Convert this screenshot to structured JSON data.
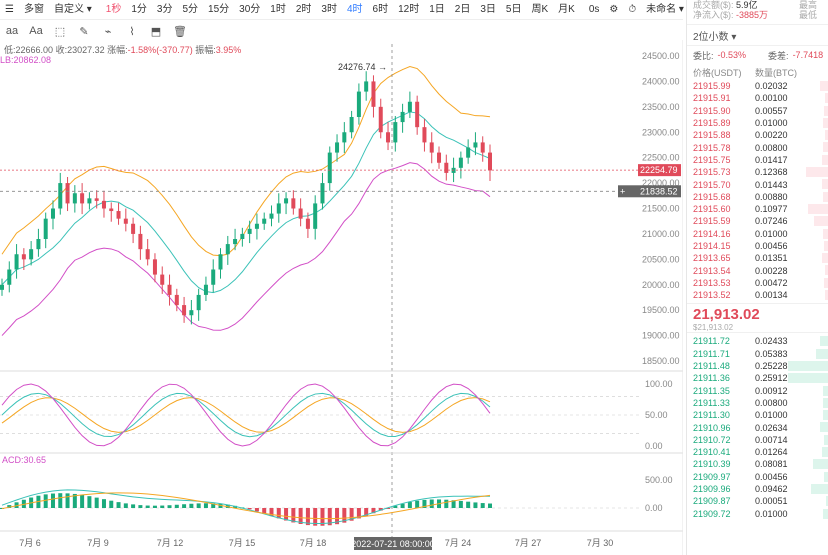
{
  "toolbar": {
    "left_items": [
      {
        "label": "☰",
        "name": "menu-icon"
      },
      {
        "label": "多窗",
        "name": "multi-window-button"
      },
      {
        "label": "自定义 ▾",
        "name": "custom-dropdown"
      }
    ],
    "intervals": [
      "1秒",
      "1分",
      "3分",
      "5分",
      "15分",
      "30分",
      "1时",
      "2时",
      "3时",
      "4时",
      "6时",
      "12时",
      "1日",
      "2日",
      "3日",
      "5日",
      "周K",
      "月K"
    ],
    "active_interval": "4时",
    "red_interval": "1秒",
    "right_items": [
      "0s",
      "⚙",
      "⏱",
      "未命名 ▾"
    ]
  },
  "toolbar2": {
    "icons": [
      "aa",
      "Aa",
      "⬚",
      "✎",
      "⌁",
      "⌇",
      "⬒",
      "🗑"
    ]
  },
  "info": {
    "low_label": "低:",
    "low": "22666.00",
    "close_label": "收:",
    "close": "23027.32",
    "change_label": "涨幅:",
    "change": "-1.58%(-370.77)",
    "amp_label": "振幅:",
    "amp": "3.95%",
    "line2": "LB:20862.08"
  },
  "chart_data": {
    "type": "candlestick",
    "price_axis": [
      "24500.00",
      "24000.00",
      "23500.00",
      "23000.00",
      "22500.00",
      "22000.00",
      "21500.00",
      "21000.00",
      "20500.00",
      "20000.00",
      "19500.00",
      "19000.00",
      "18500.00"
    ],
    "price_tag": "22254.79",
    "crosshair_price": "21838.52",
    "high_marker": "24276.74 →",
    "kdj_axis": [
      "100.00",
      "50.00",
      "0.00"
    ],
    "macd_label": "ACD:30.65",
    "macd_axis": [
      "500.00",
      "0.00"
    ],
    "date_axis": [
      "7月 6",
      "7月 9",
      "7月 12",
      "7月 15",
      "7月 18",
      "7月 24",
      "7月 27",
      "7月 30"
    ],
    "crosshair_date": "2022-07-21 08:00:00",
    "colors": {
      "up": "#1aaa7c",
      "down": "#e04a5a",
      "boll_upper": "#f5a623",
      "boll_mid": "#3bc2b8",
      "boll_lower": "#d24fc7"
    }
  },
  "panel": {
    "vol_label": "成交额(",
    "vol_unit": "$):",
    "vol_value": "5.9亿",
    "net_label": "净流入($):",
    "net_value": "-3885万",
    "r1": "最高",
    "r2": "最低",
    "decimal": "2位小数 ▾",
    "ratio_label": "委比:",
    "ratio": "-0.53%",
    "diff_label": "委差:",
    "diff": "-7.7418",
    "col_price": "价格(USDT)",
    "col_qty": "数量(BTC)",
    "asks": [
      {
        "p": "21915.99",
        "q": "0.02032",
        "w": 8
      },
      {
        "p": "21915.91",
        "q": "0.00100",
        "w": 3
      },
      {
        "p": "21915.90",
        "q": "0.00557",
        "w": 4
      },
      {
        "p": "21915.89",
        "q": "0.01000",
        "w": 5
      },
      {
        "p": "21915.88",
        "q": "0.00220",
        "w": 3
      },
      {
        "p": "21915.78",
        "q": "0.00800",
        "w": 5
      },
      {
        "p": "21915.75",
        "q": "0.01417",
        "w": 6
      },
      {
        "p": "21915.73",
        "q": "0.12368",
        "w": 22
      },
      {
        "p": "21915.70",
        "q": "0.01443",
        "w": 6
      },
      {
        "p": "21915.68",
        "q": "0.00880",
        "w": 5
      },
      {
        "p": "21915.60",
        "q": "0.10977",
        "w": 20
      },
      {
        "p": "21915.59",
        "q": "0.07246",
        "w": 14
      },
      {
        "p": "21914.16",
        "q": "0.01000",
        "w": 5
      },
      {
        "p": "21914.15",
        "q": "0.00456",
        "w": 4
      },
      {
        "p": "21913.65",
        "q": "0.01351",
        "w": 6
      },
      {
        "p": "21913.54",
        "q": "0.00228",
        "w": 3
      },
      {
        "p": "21913.53",
        "q": "0.00472",
        "w": 4
      },
      {
        "p": "21913.52",
        "q": "0.00134",
        "w": 3
      }
    ],
    "last_price": "21,913.02",
    "last_price_usd": "$21,913.02",
    "bids": [
      {
        "p": "21911.72",
        "q": "0.02433",
        "w": 8
      },
      {
        "p": "21911.71",
        "q": "0.05383",
        "w": 12
      },
      {
        "p": "21911.48",
        "q": "0.25228",
        "w": 40
      },
      {
        "p": "21911.36",
        "q": "0.25912",
        "w": 40
      },
      {
        "p": "21911.35",
        "q": "0.00912",
        "w": 5
      },
      {
        "p": "21911.33",
        "q": "0.00800",
        "w": 5
      },
      {
        "p": "21911.30",
        "q": "0.01000",
        "w": 5
      },
      {
        "p": "21910.96",
        "q": "0.02634",
        "w": 8
      },
      {
        "p": "21910.72",
        "q": "0.00714",
        "w": 4
      },
      {
        "p": "21910.41",
        "q": "0.01264",
        "w": 6
      },
      {
        "p": "21910.39",
        "q": "0.08081",
        "w": 15
      },
      {
        "p": "21909.97",
        "q": "0.00456",
        "w": 4
      },
      {
        "p": "21909.96",
        "q": "0.09462",
        "w": 17
      },
      {
        "p": "21909.87",
        "q": "0.00051",
        "w": 2
      },
      {
        "p": "21909.72",
        "q": "0.01000",
        "w": 5
      }
    ]
  }
}
